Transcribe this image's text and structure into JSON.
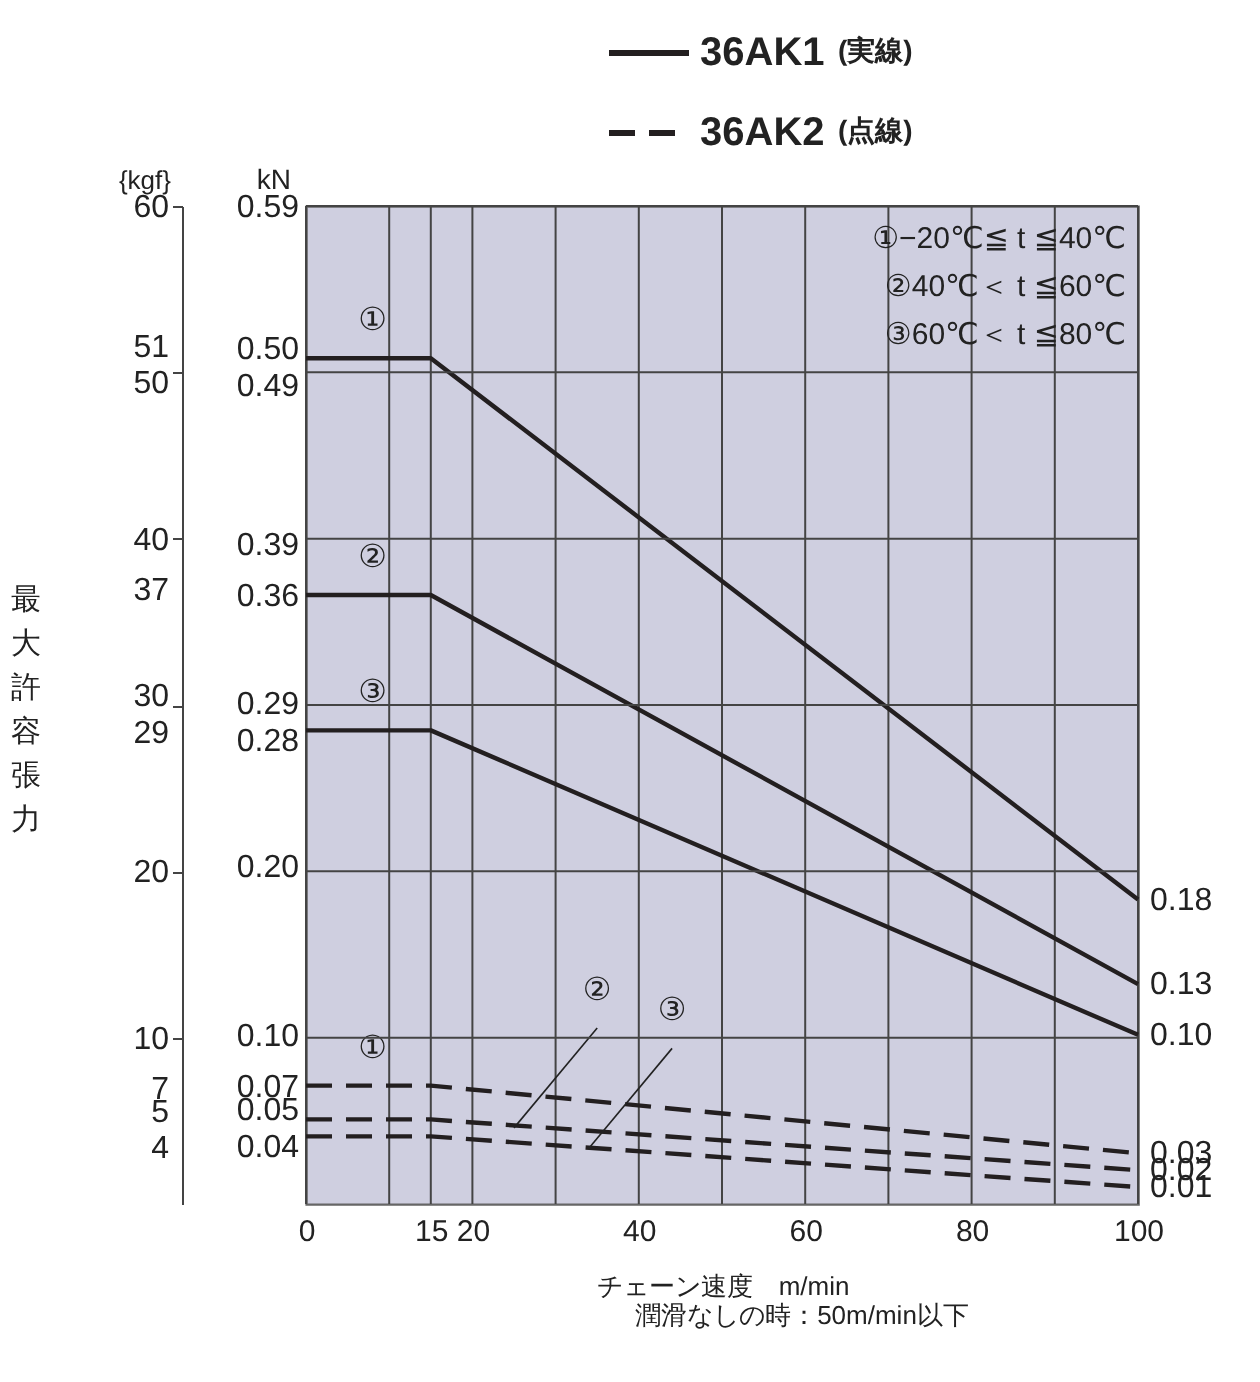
{
  "chart_data": {
    "type": "line",
    "x": [
      0,
      15,
      100
    ],
    "xlim": [
      0,
      100
    ],
    "xticks": [
      0,
      {
        "value": 10,
        "label": null
      },
      15,
      20,
      {
        "value": 30,
        "label": null
      },
      40,
      {
        "value": 50,
        "label": null
      },
      60,
      {
        "value": 70,
        "label": null
      },
      80,
      {
        "value": 90,
        "label": null
      },
      100
    ],
    "ylim": [
      0,
      0.59
    ],
    "yticks": [
      0.59,
      {
        "value": 0.5,
        "label": "0.50"
      },
      0.49,
      0.39,
      0.36,
      0.29,
      0.28,
      {
        "value": 0.2,
        "label": "0.20"
      },
      {
        "value": 0.1,
        "label": "0.10"
      },
      0.07,
      0.05,
      0.04
    ],
    "y2lim": [
      0,
      60
    ],
    "y2ticks": [
      60,
      51,
      50,
      40,
      37,
      30,
      29,
      20,
      10,
      7,
      5,
      4
    ],
    "xlabel": "チェーン速度　m/min",
    "ylabel": "kN",
    "y2label": "{kgf}",
    "grid": true,
    "legend": "top",
    "series": [
      {
        "name": "36AK1",
        "color": "#231f20",
        "line_style": "solid",
        "values": [
          0.5,
          0.5,
          0.18
        ],
        "value_labels": [
          null,
          null,
          "0.18"
        ]
      },
      {
        "color": "#231f20",
        "line_style": "solid",
        "values": [
          0.36,
          0.36,
          0.13
        ],
        "value_labels": [
          null,
          null,
          "0.13"
        ]
      },
      {
        "color": "#231f20",
        "line_style": "solid",
        "values": [
          0.28,
          0.28,
          0.1
        ],
        "value_labels": [
          null,
          null,
          "0.10"
        ]
      },
      {
        "name": "36AK2",
        "color": "#231f20",
        "line_style": "dashed",
        "values": [
          0.07,
          0.07,
          0.03
        ],
        "value_labels": [
          null,
          null,
          "0.03"
        ]
      },
      {
        "color": "#231f20",
        "line_style": "dashed",
        "values": [
          0.05,
          0.05,
          0.02
        ],
        "value_labels": [
          null,
          null,
          "0.02"
        ]
      },
      {
        "color": "#231f20",
        "line_style": "dashed",
        "values": [
          0.04,
          0.04,
          0.01
        ],
        "value_labels": [
          null,
          null,
          "0.01"
        ]
      }
    ],
    "annotations": [
      "(実線)",
      "(点線)",
      "最大許容張力",
      "潤滑なしの時：50m/min以下",
      "①−20℃≦ t ≦40℃",
      "②40℃＜ t ≦60℃",
      "③60℃＜ t ≦80℃",
      {
        "text": "①",
        "x": 8,
        "y": 0.5
      },
      {
        "text": "②",
        "x": 8,
        "y": 0.36
      },
      {
        "text": "③",
        "x": 8,
        "y": 0.28
      },
      {
        "text": "①",
        "x": 8,
        "y": 0.07
      },
      {
        "text": "②",
        "x": 25,
        "y": 0.045
      },
      {
        "text": "③",
        "x": 34,
        "y": 0.033
      }
    ]
  }
}
